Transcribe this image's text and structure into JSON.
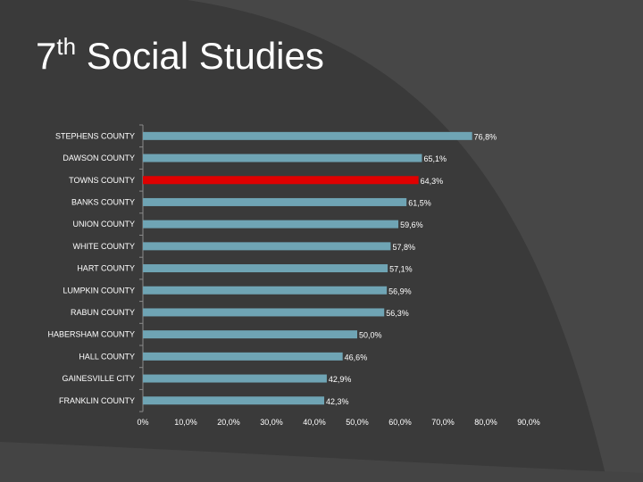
{
  "page": {
    "title_number": "7",
    "title_superscript": "th",
    "title_text": " Social Studies"
  },
  "colors": {
    "background": "#3a3a3a",
    "bar": "#6fa4b4",
    "highlight_bar": "#e00000",
    "text": "#ffffff"
  },
  "chart_data": {
    "type": "bar",
    "orientation": "horizontal",
    "title": "",
    "xlabel": "",
    "ylabel": "",
    "xlim": [
      0,
      90
    ],
    "grid": false,
    "legend": "none",
    "x_tick_labels": [
      "0%",
      "10,0%",
      "20,0%",
      "30,0%",
      "40,0%",
      "50,0%",
      "60,0%",
      "70,0%",
      "80,0%",
      "90,0%"
    ],
    "x_tick_values": [
      0,
      10,
      20,
      30,
      40,
      50,
      60,
      70,
      80,
      90
    ],
    "categories": [
      "STEPHENS COUNTY",
      "DAWSON COUNTY",
      "TOWNS COUNTY",
      "BANKS COUNTY",
      "UNION COUNTY",
      "WHITE COUNTY",
      "HART COUNTY",
      "LUMPKIN COUNTY",
      "RABUN COUNTY",
      "HABERSHAM COUNTY",
      "HALL COUNTY",
      "GAINESVILLE CITY",
      "FRANKLIN COUNTY"
    ],
    "values": [
      76.8,
      65.1,
      64.3,
      61.5,
      59.6,
      57.8,
      57.1,
      56.9,
      56.3,
      50.0,
      46.6,
      42.9,
      42.3
    ],
    "data_labels": [
      "76,8%",
      "65,1%",
      "64,3%",
      "61,5%",
      "59,6%",
      "57,8%",
      "57,1%",
      "56,9%",
      "56,3%",
      "50,0%",
      "46,6%",
      "42,9%",
      "42,3%"
    ],
    "highlight_category": "TOWNS COUNTY"
  }
}
